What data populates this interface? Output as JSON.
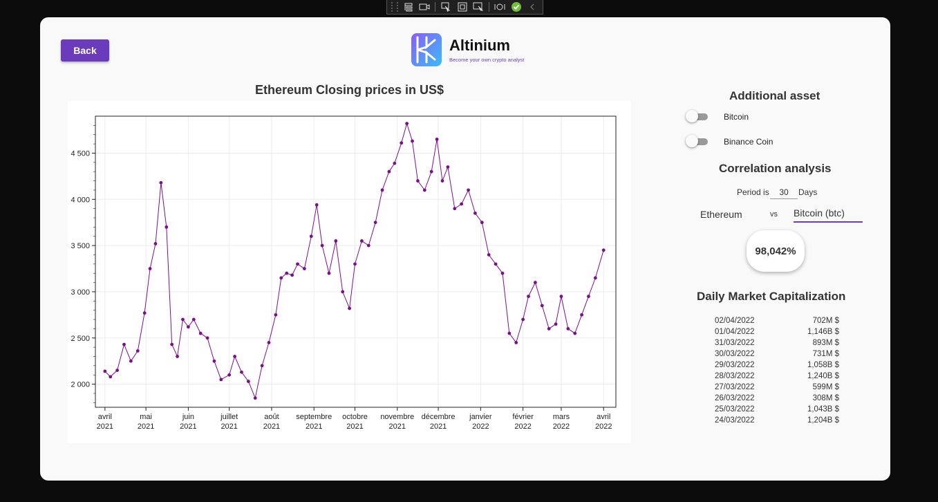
{
  "header": {
    "back_label": "Back"
  },
  "brand": {
    "name": "Altinium",
    "tagline": "Become your own crypto analyst"
  },
  "chart_data": {
    "type": "line",
    "title": "Ethereum Closing prices in US$",
    "color": "#7a0f8a",
    "y_ticks": [
      "2 000",
      "2 500",
      "3 000",
      "3 500",
      "4 000",
      "4 500"
    ],
    "y_tick_values": [
      2000,
      2500,
      3000,
      3500,
      4000,
      4500
    ],
    "ylim": [
      1750,
      4900
    ],
    "x_ticks": [
      {
        "label": "avril",
        "year": "2021",
        "date": "2021-04-01"
      },
      {
        "label": "mai",
        "year": "2021",
        "date": "2021-05-01"
      },
      {
        "label": "juin",
        "year": "2021",
        "date": "2021-06-01"
      },
      {
        "label": "juillet",
        "year": "2021",
        "date": "2021-07-01"
      },
      {
        "label": "août",
        "year": "2021",
        "date": "2021-08-01"
      },
      {
        "label": "septembre",
        "year": "2021",
        "date": "2021-09-01"
      },
      {
        "label": "octobre",
        "year": "2021",
        "date": "2021-10-01"
      },
      {
        "label": "novembre",
        "year": "2021",
        "date": "2021-11-01"
      },
      {
        "label": "décembre",
        "year": "2021",
        "date": "2021-12-01"
      },
      {
        "label": "janvier",
        "year": "2022",
        "date": "2022-01-01"
      },
      {
        "label": "février",
        "year": "2022",
        "date": "2022-02-01"
      },
      {
        "label": "mars",
        "year": "2022",
        "date": "2022-03-01"
      },
      {
        "label": "avril",
        "year": "2022",
        "date": "2022-04-01"
      }
    ],
    "xlim": [
      "2021-03-25",
      "2022-04-10"
    ],
    "grid": true,
    "series": [
      {
        "x": [
          "2021-04-01",
          "2021-04-05",
          "2021-04-10",
          "2021-04-15",
          "2021-04-20",
          "2021-04-25",
          "2021-04-30",
          "2021-05-04",
          "2021-05-08",
          "2021-05-12",
          "2021-05-16",
          "2021-05-20",
          "2021-05-24",
          "2021-05-28",
          "2021-06-01",
          "2021-06-05",
          "2021-06-10",
          "2021-06-15",
          "2021-06-20",
          "2021-06-25",
          "2021-07-01",
          "2021-07-05",
          "2021-07-10",
          "2021-07-15",
          "2021-07-20",
          "2021-07-25",
          "2021-07-30",
          "2021-08-04",
          "2021-08-08",
          "2021-08-12",
          "2021-08-16",
          "2021-08-20",
          "2021-08-25",
          "2021-08-30",
          "2021-09-03",
          "2021-09-07",
          "2021-09-12",
          "2021-09-17",
          "2021-09-22",
          "2021-09-27",
          "2021-10-01",
          "2021-10-06",
          "2021-10-11",
          "2021-10-16",
          "2021-10-21",
          "2021-10-26",
          "2021-10-30",
          "2021-11-04",
          "2021-11-08",
          "2021-11-12",
          "2021-11-16",
          "2021-11-21",
          "2021-11-26",
          "2021-11-30",
          "2021-12-04",
          "2021-12-08",
          "2021-12-13",
          "2021-12-18",
          "2021-12-23",
          "2021-12-28",
          "2022-01-02",
          "2022-01-07",
          "2022-01-12",
          "2022-01-17",
          "2022-01-22",
          "2022-01-27",
          "2022-02-01",
          "2022-02-05",
          "2022-02-10",
          "2022-02-15",
          "2022-02-20",
          "2022-02-25",
          "2022-03-01",
          "2022-03-06",
          "2022-03-11",
          "2022-03-16",
          "2022-03-21",
          "2022-03-26",
          "2022-04-01"
        ],
        "y": [
          2140,
          2080,
          2150,
          2430,
          2250,
          2360,
          2770,
          3250,
          3520,
          4180,
          3700,
          2430,
          2300,
          2700,
          2620,
          2700,
          2550,
          2500,
          2250,
          2050,
          2100,
          2300,
          2130,
          2030,
          1850,
          2200,
          2450,
          2750,
          3150,
          3200,
          3180,
          3300,
          3250,
          3600,
          3940,
          3500,
          3200,
          3550,
          3000,
          2820,
          3300,
          3550,
          3500,
          3750,
          4100,
          4300,
          4390,
          4610,
          4820,
          4630,
          4200,
          4100,
          4300,
          4650,
          4200,
          4350,
          3900,
          3950,
          4100,
          3850,
          3750,
          3400,
          3300,
          3200,
          2550,
          2450,
          2700,
          2950,
          3100,
          2850,
          2600,
          2650,
          2950,
          2600,
          2550,
          2750,
          2950,
          3150,
          3450
        ]
      }
    ]
  },
  "sidebar": {
    "additional_asset_title": "Additional asset",
    "assets": [
      {
        "label": "Bitcoin",
        "on": false
      },
      {
        "label": "Binance Coin",
        "on": false
      }
    ],
    "correlation_title": "Correlation analysis",
    "period_prefix": "Period is",
    "period_value": "30",
    "period_suffix": "Days",
    "asset_a": "Ethereum",
    "vs": "vs",
    "asset_b": "Bitcoin (btc)",
    "correlation_value": "98,042%",
    "market_cap_title": "Daily Market Capitalization",
    "market_caps": [
      {
        "date": "02/04/2022",
        "value": "702M $"
      },
      {
        "date": "01/04/2022",
        "value": "1,146B $"
      },
      {
        "date": "31/03/2022",
        "value": "893M $"
      },
      {
        "date": "30/03/2022",
        "value": "731M $"
      },
      {
        "date": "29/03/2022",
        "value": "1,058B $"
      },
      {
        "date": "28/03/2022",
        "value": "1,240B $"
      },
      {
        "date": "27/03/2022",
        "value": "599M $"
      },
      {
        "date": "26/03/2022",
        "value": "308M $"
      },
      {
        "date": "25/03/2022",
        "value": "1,043B $"
      },
      {
        "date": "24/03/2022",
        "value": "1,204B $"
      }
    ]
  }
}
